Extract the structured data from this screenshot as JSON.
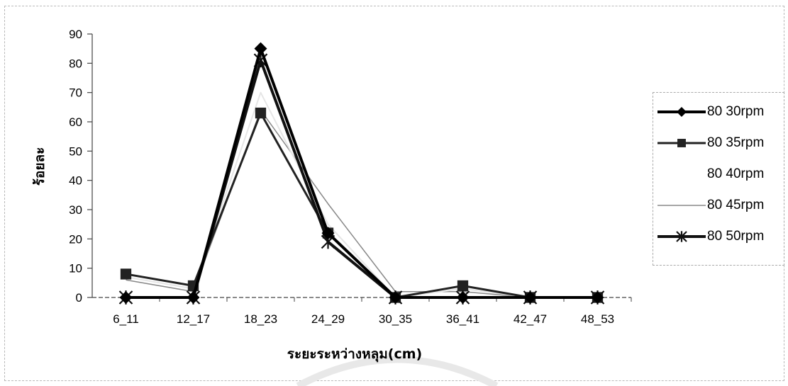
{
  "chart_data": {
    "type": "line",
    "title": "",
    "xlabel": "ระยะระหว่างหลุม(cm)",
    "ylabel": "ร้อยละ",
    "categories": [
      "6_11",
      "12_17",
      "18_23",
      "24_29",
      "30_35",
      "36_41",
      "42_47",
      "48_53"
    ],
    "ylim": [
      0,
      90
    ],
    "yticks": [
      0,
      10,
      20,
      30,
      40,
      50,
      60,
      70,
      80,
      90
    ],
    "grid": false,
    "legend_position": "right",
    "series": [
      {
        "name": "80 30rpm",
        "marker": "diamond",
        "color": "#000000",
        "width": 4,
        "values": [
          0,
          0,
          85,
          22,
          0,
          0,
          0,
          0
        ]
      },
      {
        "name": "80 35rpm",
        "marker": "square",
        "color": "#222222",
        "width": 3,
        "values": [
          8,
          4,
          63,
          22,
          0,
          4,
          0,
          0
        ]
      },
      {
        "name": "80 40rpm",
        "marker": "none",
        "color": "#e6e6e6",
        "width": 2,
        "values": [
          7,
          3,
          70,
          25,
          0,
          3,
          0,
          0
        ]
      },
      {
        "name": "80 45rpm",
        "marker": "none",
        "color": "#888888",
        "width": 1.5,
        "values": [
          6,
          2,
          64,
          32,
          2,
          2,
          0,
          0
        ]
      },
      {
        "name": "80 50rpm",
        "marker": "asterisk",
        "color": "#111111",
        "width": 4,
        "values": [
          0,
          0,
          81,
          19,
          0,
          0,
          0,
          0
        ]
      }
    ]
  }
}
